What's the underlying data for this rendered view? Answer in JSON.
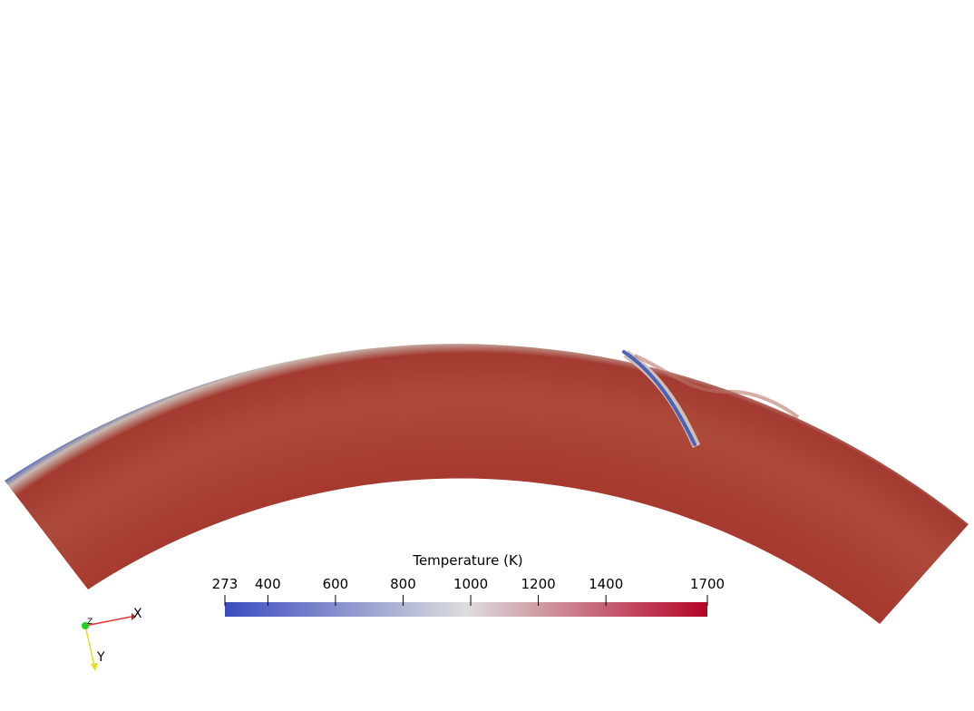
{
  "colorbar": {
    "title": "Temperature (K)",
    "range": [
      273,
      1700
    ],
    "ticks": [
      273,
      400,
      600,
      800,
      1000,
      1200,
      1400,
      1700
    ],
    "colors": [
      "#3b4cc0",
      "#dddddd",
      "#b40426"
    ]
  },
  "axes": {
    "x": "X",
    "y": "Y",
    "z": "Z"
  }
}
